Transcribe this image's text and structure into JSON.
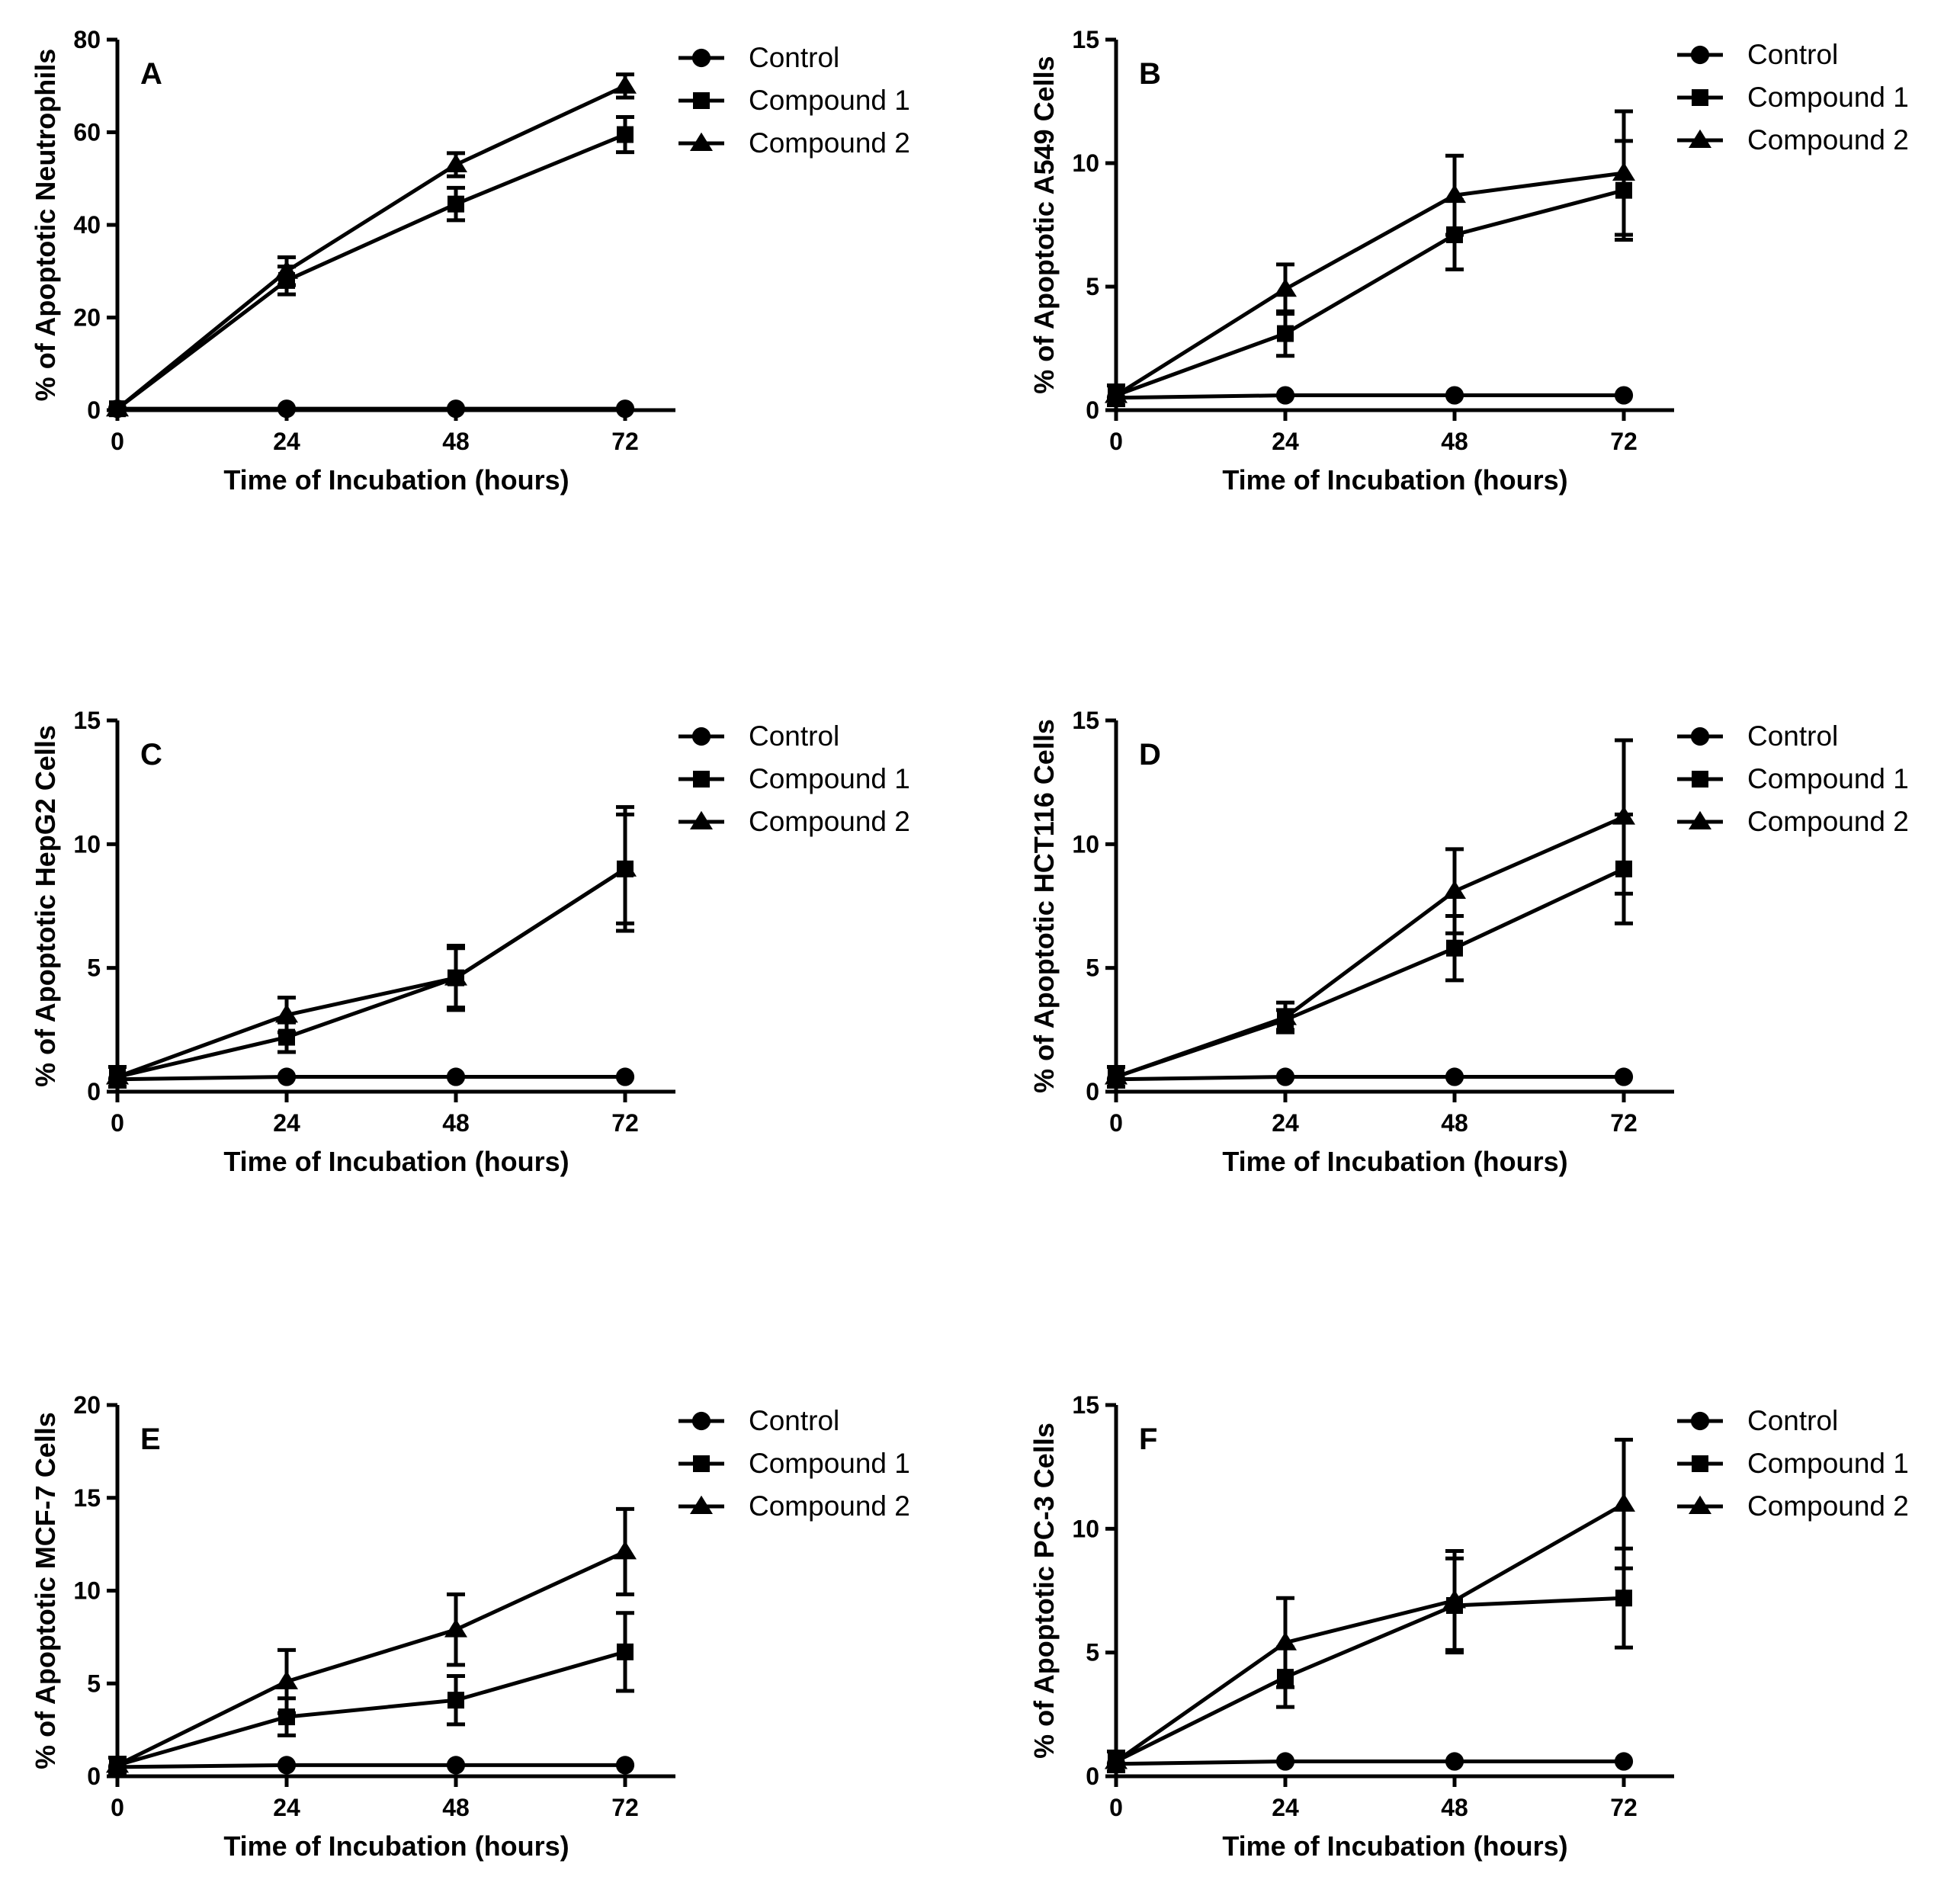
{
  "figure": {
    "legend_entries": [
      "Control",
      "Compound 1",
      "Compound 2"
    ]
  },
  "chart_data": [
    {
      "panel": "A",
      "type": "line",
      "xlabel": "Time of Incubation (hours)",
      "ylabel": "% of Apoptotic Neutrophils",
      "x": [
        0,
        24,
        48,
        72
      ],
      "xticks": [
        "0",
        "24",
        "48",
        "72"
      ],
      "ylim": [
        0,
        80
      ],
      "yticks": [
        "0",
        "20",
        "40",
        "60",
        "80"
      ],
      "legend": "top-right",
      "grid": false,
      "series": [
        {
          "name": "Control",
          "marker": "circle",
          "values": [
            0.3,
            0.3,
            0.3,
            0.3
          ],
          "errors": [
            0,
            0,
            0,
            0
          ]
        },
        {
          "name": "Compound 1",
          "marker": "square",
          "values": [
            0.3,
            28,
            44.5,
            59.5
          ],
          "errors": [
            0,
            3,
            3.5,
            3.8
          ]
        },
        {
          "name": "Compound 2",
          "marker": "triangle",
          "values": [
            0.3,
            30,
            53,
            70
          ],
          "errors": [
            0,
            3,
            2.5,
            2.5
          ]
        }
      ]
    },
    {
      "panel": "B",
      "type": "line",
      "xlabel": "Time of Incubation (hours)",
      "ylabel": "% of Apoptotic A549 Cells",
      "x": [
        0,
        24,
        48,
        72
      ],
      "xticks": [
        "0",
        "24",
        "48",
        "72"
      ],
      "ylim": [
        0,
        15
      ],
      "yticks": [
        "0",
        "5",
        "10",
        "15"
      ],
      "legend": "top-right",
      "grid": false,
      "series": [
        {
          "name": "Control",
          "marker": "circle",
          "values": [
            0.5,
            0.6,
            0.6,
            0.6
          ],
          "errors": [
            0,
            0,
            0,
            0
          ]
        },
        {
          "name": "Compound 1",
          "marker": "square",
          "values": [
            0.6,
            3.1,
            7.1,
            8.9
          ],
          "errors": [
            0.4,
            0.9,
            1.4,
            2.0
          ]
        },
        {
          "name": "Compound 2",
          "marker": "triangle",
          "values": [
            0.6,
            4.9,
            8.7,
            9.6
          ],
          "errors": [
            0.4,
            1.0,
            1.6,
            2.5
          ]
        }
      ]
    },
    {
      "panel": "C",
      "type": "line",
      "xlabel": "Time of Incubation (hours)",
      "ylabel": "% of Apoptotic HepG2 Cells",
      "x": [
        0,
        24,
        48,
        72
      ],
      "xticks": [
        "0",
        "24",
        "48",
        "72"
      ],
      "ylim": [
        0,
        15
      ],
      "yticks": [
        "0",
        "5",
        "10",
        "15"
      ],
      "legend": "top-right",
      "grid": false,
      "series": [
        {
          "name": "Control",
          "marker": "circle",
          "values": [
            0.5,
            0.6,
            0.6,
            0.6
          ],
          "errors": [
            0,
            0,
            0,
            0
          ]
        },
        {
          "name": "Compound 1",
          "marker": "square",
          "values": [
            0.6,
            2.2,
            4.6,
            9.0
          ],
          "errors": [
            0.4,
            0.6,
            1.2,
            2.2
          ]
        },
        {
          "name": "Compound 2",
          "marker": "triangle",
          "values": [
            0.6,
            3.1,
            4.6,
            9.0
          ],
          "errors": [
            0.4,
            0.7,
            1.3,
            2.5
          ]
        }
      ]
    },
    {
      "panel": "D",
      "type": "line",
      "xlabel": "Time of Incubation (hours)",
      "ylabel": "% of Apoptotic HCT116 Cells",
      "x": [
        0,
        24,
        48,
        72
      ],
      "xticks": [
        "0",
        "24",
        "48",
        "72"
      ],
      "ylim": [
        0,
        15
      ],
      "yticks": [
        "0",
        "5",
        "10",
        "15"
      ],
      "legend": "top-right",
      "grid": false,
      "series": [
        {
          "name": "Control",
          "marker": "circle",
          "values": [
            0.5,
            0.6,
            0.6,
            0.6
          ],
          "errors": [
            0,
            0,
            0,
            0
          ]
        },
        {
          "name": "Compound 1",
          "marker": "square",
          "values": [
            0.6,
            2.9,
            5.8,
            9.0
          ],
          "errors": [
            0.4,
            0.4,
            1.3,
            2.2
          ]
        },
        {
          "name": "Compound 2",
          "marker": "triangle",
          "values": [
            0.6,
            3.0,
            8.1,
            11.1
          ],
          "errors": [
            0.4,
            0.6,
            1.7,
            3.1
          ]
        }
      ]
    },
    {
      "panel": "E",
      "type": "line",
      "xlabel": "Time of Incubation (hours)",
      "ylabel": "% of Apoptotic MCF-7 Cells",
      "x": [
        0,
        24,
        48,
        72
      ],
      "xticks": [
        "0",
        "24",
        "48",
        "72"
      ],
      "ylim": [
        0,
        20
      ],
      "yticks": [
        "0",
        "5",
        "10",
        "15",
        "20"
      ],
      "legend": "top-right",
      "grid": false,
      "series": [
        {
          "name": "Control",
          "marker": "circle",
          "values": [
            0.5,
            0.6,
            0.6,
            0.6
          ],
          "errors": [
            0,
            0,
            0,
            0
          ]
        },
        {
          "name": "Compound 1",
          "marker": "square",
          "values": [
            0.6,
            3.2,
            4.1,
            6.7
          ],
          "errors": [
            0.4,
            1.0,
            1.3,
            2.1
          ]
        },
        {
          "name": "Compound 2",
          "marker": "triangle",
          "values": [
            0.6,
            5.1,
            7.9,
            12.1
          ],
          "errors": [
            0.4,
            1.7,
            1.9,
            2.3
          ]
        }
      ]
    },
    {
      "panel": "F",
      "type": "line",
      "xlabel": "Time of Incubation (hours)",
      "ylabel": "% of Apoptotic PC-3 Cells",
      "x": [
        0,
        24,
        48,
        72
      ],
      "xticks": [
        "0",
        "24",
        "48",
        "72"
      ],
      "ylim": [
        0,
        15
      ],
      "yticks": [
        "0",
        "5",
        "10",
        "15"
      ],
      "legend": "top-right",
      "grid": false,
      "series": [
        {
          "name": "Control",
          "marker": "circle",
          "values": [
            0.5,
            0.6,
            0.6,
            0.6
          ],
          "errors": [
            0,
            0,
            0,
            0
          ]
        },
        {
          "name": "Compound 1",
          "marker": "square",
          "values": [
            0.6,
            4.0,
            6.9,
            7.2
          ],
          "errors": [
            0.4,
            1.2,
            1.9,
            2.0
          ]
        },
        {
          "name": "Compound 2",
          "marker": "triangle",
          "values": [
            0.6,
            5.4,
            7.1,
            11.0
          ],
          "errors": [
            0.4,
            1.8,
            2.0,
            2.6
          ]
        }
      ]
    }
  ]
}
